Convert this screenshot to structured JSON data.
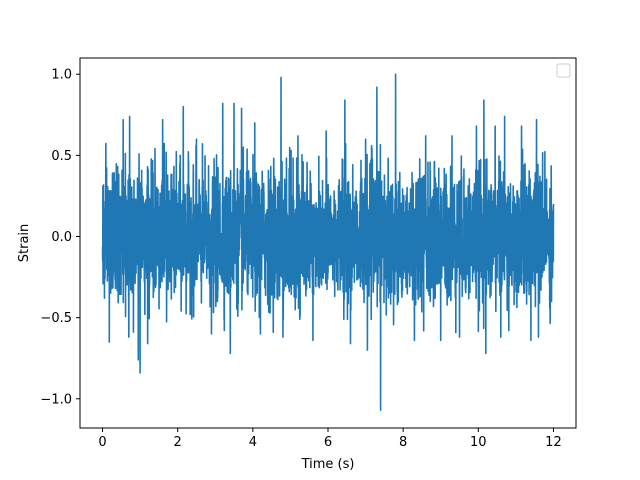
{
  "chart_data": {
    "type": "line",
    "title": "",
    "xlabel": "Time (s)",
    "ylabel": "Strain",
    "xlim": [
      -0.6,
      12.6
    ],
    "ylim": [
      -1.18,
      1.1
    ],
    "x_ticks": [
      {
        "value": 0,
        "label": "0"
      },
      {
        "value": 2,
        "label": "2"
      },
      {
        "value": 4,
        "label": "4"
      },
      {
        "value": 6,
        "label": "6"
      },
      {
        "value": 8,
        "label": "8"
      },
      {
        "value": 10,
        "label": "10"
      },
      {
        "value": 12,
        "label": "12"
      }
    ],
    "y_ticks": [
      {
        "value": -1.0,
        "label": "−1.0"
      },
      {
        "value": -0.5,
        "label": "−0.5"
      },
      {
        "value": 0.0,
        "label": "0.0"
      },
      {
        "value": 0.5,
        "label": "0.5"
      },
      {
        "value": 1.0,
        "label": "1.0"
      }
    ],
    "grid": false,
    "legend": {
      "placement": "top-right",
      "entries": []
    },
    "series": [
      {
        "color": "#1f77b4",
        "x_start": 0.0,
        "x_end": 12.0,
        "typical_amplitude": 0.35,
        "envelope_max": 0.6,
        "peaks": [
          {
            "x": 0.05,
            "y": 0.42
          },
          {
            "x": 0.05,
            "y": -0.38
          },
          {
            "x": 0.18,
            "y": 0.6
          },
          {
            "x": 0.18,
            "y": -0.65
          },
          {
            "x": 0.55,
            "y": 0.72
          },
          {
            "x": 0.72,
            "y": 0.74
          },
          {
            "x": 0.7,
            "y": -0.62
          },
          {
            "x": 0.95,
            "y": -0.76
          },
          {
            "x": 1.0,
            "y": -0.84
          },
          {
            "x": 1.2,
            "y": 0.7
          },
          {
            "x": 1.2,
            "y": -0.66
          },
          {
            "x": 1.6,
            "y": 0.72
          },
          {
            "x": 2.15,
            "y": 0.8
          },
          {
            "x": 2.5,
            "y": 0.6
          },
          {
            "x": 2.9,
            "y": -0.6
          },
          {
            "x": 3.2,
            "y": 0.82
          },
          {
            "x": 3.5,
            "y": 0.82
          },
          {
            "x": 3.4,
            "y": -0.72
          },
          {
            "x": 3.7,
            "y": 0.79
          },
          {
            "x": 4.05,
            "y": 0.7
          },
          {
            "x": 4.2,
            "y": -0.6
          },
          {
            "x": 4.75,
            "y": 0.98
          },
          {
            "x": 4.8,
            "y": -0.62
          },
          {
            "x": 5.2,
            "y": 0.62
          },
          {
            "x": 5.6,
            "y": -0.64
          },
          {
            "x": 5.95,
            "y": 0.65
          },
          {
            "x": 6.45,
            "y": 0.84
          },
          {
            "x": 6.6,
            "y": -0.66
          },
          {
            "x": 7.0,
            "y": 0.6
          },
          {
            "x": 7.05,
            "y": -0.7
          },
          {
            "x": 7.3,
            "y": 0.92
          },
          {
            "x": 7.4,
            "y": 0.92
          },
          {
            "x": 7.4,
            "y": -1.07
          },
          {
            "x": 7.8,
            "y": 1.0
          },
          {
            "x": 8.3,
            "y": -0.64
          },
          {
            "x": 8.6,
            "y": 0.62
          },
          {
            "x": 9.0,
            "y": -0.64
          },
          {
            "x": 9.3,
            "y": 0.62
          },
          {
            "x": 9.5,
            "y": -0.62
          },
          {
            "x": 9.95,
            "y": 0.68
          },
          {
            "x": 10.15,
            "y": 0.84
          },
          {
            "x": 10.2,
            "y": -0.72
          },
          {
            "x": 10.45,
            "y": 0.68
          },
          {
            "x": 10.7,
            "y": 0.74
          },
          {
            "x": 10.6,
            "y": -0.62
          },
          {
            "x": 11.15,
            "y": 0.68
          },
          {
            "x": 11.4,
            "y": -0.64
          },
          {
            "x": 11.55,
            "y": 0.72
          },
          {
            "x": 11.6,
            "y": -0.62
          },
          {
            "x": 11.95,
            "y": 0.5
          },
          {
            "x": 11.95,
            "y": -0.4
          },
          {
            "x": 12.0,
            "y": 0.2
          }
        ]
      }
    ]
  }
}
